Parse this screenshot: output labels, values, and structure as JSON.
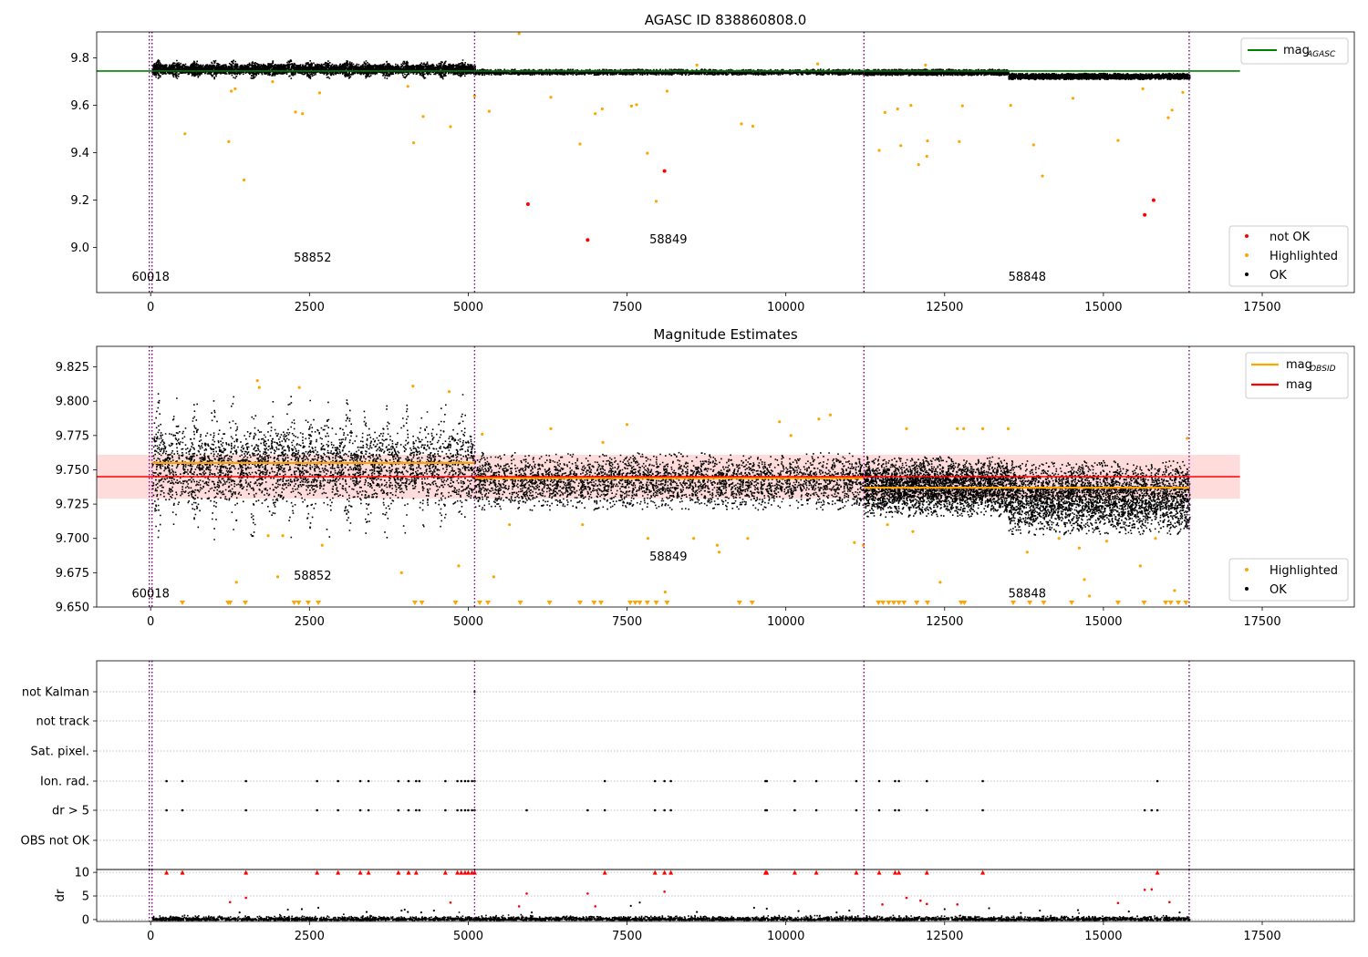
{
  "colors": {
    "ok": "#000000",
    "highlighted": "#ffa500",
    "not_ok": "#ff0000",
    "agasc_line": "#008000",
    "mag_line": "#ff0000",
    "obsid_line": "#ffa500",
    "vline": "#800080",
    "band": "#ffd6d6"
  },
  "chart_data": [
    {
      "type": "scatter",
      "title": "AGASC ID 838860808.0",
      "xlim": [
        -850,
        18950
      ],
      "ylim": [
        8.81,
        9.91
      ],
      "xticks": [
        0,
        2500,
        5000,
        7500,
        10000,
        12500,
        15000,
        17500
      ],
      "xtick_labels": [
        "0",
        "2500",
        "5000",
        "7500",
        "10000",
        "12500",
        "15000",
        "17500"
      ],
      "yticks": [
        9.0,
        9.2,
        9.4,
        9.6,
        9.8
      ],
      "ytick_labels": [
        "9.0",
        "9.2",
        "9.4",
        "9.6",
        "9.8"
      ],
      "obsid_boundaries": [
        0,
        5100,
        11230,
        16350
      ],
      "obsid_labels": [
        {
          "text": "60018",
          "x": 0,
          "y": 8.86
        },
        {
          "text": "58852",
          "x": 2550,
          "y": 8.94
        },
        {
          "text": "58849",
          "x": 8150,
          "y": 9.017
        },
        {
          "text": "58848",
          "x": 13800,
          "y": 8.86
        }
      ],
      "agasc_mag": 9.745,
      "agasc_line_x": [
        -850,
        17150
      ],
      "band_model": [
        {
          "x": [
            20,
            5100
          ],
          "center": 9.755,
          "half": 0.022,
          "osc": 0.018
        },
        {
          "x": [
            5100,
            11230
          ],
          "center": 9.743,
          "half": 0.012,
          "osc": 0
        },
        {
          "x": [
            11230,
            13500
          ],
          "center": 9.742,
          "half": 0.013,
          "osc": 0
        },
        {
          "x": [
            13500,
            16350
          ],
          "center": 9.725,
          "half": 0.013,
          "osc": 0
        }
      ],
      "highlighted_points": [
        [
          540,
          9.48
        ],
        [
          1230,
          9.447
        ],
        [
          1470,
          9.285
        ],
        [
          1270,
          9.66
        ],
        [
          1330,
          9.67
        ],
        [
          2280,
          9.572
        ],
        [
          2390,
          9.565
        ],
        [
          2660,
          9.653
        ],
        [
          1920,
          9.7
        ],
        [
          4140,
          9.442
        ],
        [
          4290,
          9.553
        ],
        [
          4720,
          9.51
        ],
        [
          4050,
          9.68
        ],
        [
          5100,
          9.64
        ],
        [
          5330,
          9.575
        ],
        [
          5800,
          9.903
        ],
        [
          6300,
          9.634
        ],
        [
          6760,
          9.437
        ],
        [
          7000,
          9.565
        ],
        [
          7110,
          9.585
        ],
        [
          7570,
          9.597
        ],
        [
          7650,
          9.603
        ],
        [
          7820,
          9.398
        ],
        [
          7960,
          9.195
        ],
        [
          8130,
          9.66
        ],
        [
          9300,
          9.522
        ],
        [
          9480,
          9.512
        ],
        [
          11470,
          9.41
        ],
        [
          11560,
          9.57
        ],
        [
          11760,
          9.585
        ],
        [
          11810,
          9.43
        ],
        [
          11970,
          9.6
        ],
        [
          12090,
          9.35
        ],
        [
          12220,
          9.385
        ],
        [
          12230,
          9.45
        ],
        [
          12730,
          9.447
        ],
        [
          12780,
          9.598
        ],
        [
          13540,
          9.6
        ],
        [
          13900,
          9.433
        ],
        [
          14040,
          9.302
        ],
        [
          14520,
          9.63
        ],
        [
          15230,
          9.452
        ],
        [
          15620,
          9.67
        ],
        [
          16020,
          9.548
        ],
        [
          16080,
          9.58
        ],
        [
          16250,
          9.655
        ],
        [
          8600,
          9.77
        ],
        [
          10500,
          9.775
        ],
        [
          12200,
          9.77
        ]
      ],
      "not_ok_points": [
        [
          5940,
          9.183
        ],
        [
          6880,
          9.032
        ],
        [
          8090,
          9.323
        ],
        [
          15650,
          9.138
        ],
        [
          15790,
          9.2
        ]
      ],
      "legend": [
        {
          "kind": "point",
          "label": "not OK",
          "color": "#ff0000"
        },
        {
          "kind": "point",
          "label": "Highlighted",
          "color": "#ffa500"
        },
        {
          "kind": "point",
          "label": "OK",
          "color": "#000000"
        }
      ],
      "legend_line": {
        "label": "mag",
        "subscript": "AGASC",
        "color": "#008000"
      }
    },
    {
      "type": "scatter",
      "title": "Magnitude Estimates",
      "xlim": [
        -850,
        18950
      ],
      "ylim": [
        9.65,
        9.84
      ],
      "xticks": [
        0,
        2500,
        5000,
        7500,
        10000,
        12500,
        15000,
        17500
      ],
      "xtick_labels": [
        "0",
        "2500",
        "5000",
        "7500",
        "10000",
        "12500",
        "15000",
        "17500"
      ],
      "yticks": [
        9.65,
        9.675,
        9.7,
        9.725,
        9.75,
        9.775,
        9.8,
        9.825
      ],
      "ytick_labels": [
        "9.650",
        "9.675",
        "9.700",
        "9.725",
        "9.750",
        "9.775",
        "9.800",
        "9.825"
      ],
      "obsid_boundaries": [
        0,
        5100,
        11230,
        16350
      ],
      "obsid_labels": [
        {
          "text": "60018",
          "x": 0,
          "y": 9.657
        },
        {
          "text": "58852",
          "x": 2550,
          "y": 9.67
        },
        {
          "text": "58849",
          "x": 8150,
          "y": 9.684
        },
        {
          "text": "58848",
          "x": 13800,
          "y": 9.657
        }
      ],
      "mag": 9.745,
      "mag_band": [
        9.729,
        9.761
      ],
      "mag_line_x": [
        -850,
        17150
      ],
      "obsid_mag_segments": [
        {
          "x": [
            20,
            5100
          ],
          "y": 9.755
        },
        {
          "x": [
            5100,
            11230
          ],
          "y": 9.744
        },
        {
          "x": [
            11230,
            16350
          ],
          "y": 9.737
        }
      ],
      "band_model": [
        {
          "x": [
            20,
            5100
          ],
          "center": 9.753,
          "half": 0.028,
          "osc": 0.026
        },
        {
          "x": [
            5100,
            11230
          ],
          "center": 9.742,
          "half": 0.021,
          "osc": 0
        },
        {
          "x": [
            11230,
            13500
          ],
          "center": 9.738,
          "half": 0.022,
          "osc": 0
        },
        {
          "x": [
            13500,
            16350
          ],
          "center": 9.73,
          "half": 0.027,
          "osc": 0
        }
      ],
      "highlighted_points": [
        [
          1680,
          9.815
        ],
        [
          1710,
          9.81
        ],
        [
          2340,
          9.81
        ],
        [
          4130,
          9.811
        ],
        [
          4700,
          9.807
        ],
        [
          1850,
          9.702
        ],
        [
          2080,
          9.702
        ],
        [
          2700,
          9.695
        ],
        [
          2640,
          9.755
        ],
        [
          2000,
          9.672
        ],
        [
          1350,
          9.668
        ],
        [
          3950,
          9.675
        ],
        [
          4850,
          9.68
        ],
        [
          5220,
          9.776
        ],
        [
          5400,
          9.672
        ],
        [
          6300,
          9.78
        ],
        [
          7120,
          9.77
        ],
        [
          7500,
          9.783
        ],
        [
          8100,
          9.661
        ],
        [
          8920,
          9.695
        ],
        [
          8950,
          9.69
        ],
        [
          9900,
          9.785
        ],
        [
          10080,
          9.775
        ],
        [
          10520,
          9.787
        ],
        [
          10700,
          9.79
        ],
        [
          11080,
          9.697
        ],
        [
          11220,
          9.695
        ],
        [
          11900,
          9.78
        ],
        [
          12430,
          9.668
        ],
        [
          12700,
          9.78
        ],
        [
          12800,
          9.78
        ],
        [
          13100,
          9.78
        ],
        [
          13500,
          9.78
        ],
        [
          13800,
          9.69
        ],
        [
          14300,
          9.7
        ],
        [
          14620,
          9.693
        ],
        [
          14700,
          9.67
        ],
        [
          14780,
          9.658
        ],
        [
          15050,
          9.698
        ],
        [
          15580,
          9.68
        ],
        [
          15820,
          9.7
        ],
        [
          16120,
          9.662
        ],
        [
          16320,
          9.773
        ],
        [
          7830,
          9.7
        ],
        [
          8550,
          9.7
        ],
        [
          9400,
          9.7
        ],
        [
          5650,
          9.71
        ],
        [
          6800,
          9.71
        ],
        [
          12000,
          9.705
        ],
        [
          11600,
          9.71
        ]
      ],
      "highlighted_down": [
        500,
        1220,
        1250,
        1490,
        2260,
        2330,
        2480,
        2640,
        4160,
        4270,
        4800,
        5180,
        5310,
        5820,
        6280,
        6760,
        6980,
        7090,
        7550,
        7630,
        7700,
        7820,
        7960,
        8130,
        9270,
        9470,
        11460,
        11530,
        11620,
        11700,
        11780,
        11860,
        12060,
        12230,
        12760,
        12810,
        13580,
        13840,
        14060,
        14500,
        15230,
        15640,
        15980,
        16060,
        16180,
        16300
      ],
      "legend": [
        {
          "kind": "point",
          "label": "Highlighted",
          "color": "#ffa500"
        },
        {
          "kind": "point",
          "label": "OK",
          "color": "#000000"
        }
      ],
      "legend_lines": [
        {
          "label": "mag",
          "subscript": "OBSID",
          "color": "#ffa500"
        },
        {
          "label": "mag",
          "subscript": "",
          "color": "#ff0000"
        }
      ]
    },
    {
      "type": "scatter",
      "title": "",
      "xlim": [
        -850,
        18950
      ],
      "flag_rows": [
        "not Kalman",
        "not track",
        "Sat. pixel.",
        "Ion. rad.",
        "dr > 5",
        "OBS not OK"
      ],
      "obsid_boundaries": [
        0,
        5100,
        11230,
        16350
      ],
      "ion_rad_x": [
        250,
        500,
        1500,
        2620,
        2950,
        3300,
        3430,
        3900,
        4060,
        4180,
        4230,
        4640,
        4830,
        4890,
        4950,
        5000,
        5060,
        5100,
        7150,
        7940,
        8090,
        8190,
        9680,
        9700,
        10140,
        10480,
        11110,
        11470,
        11720,
        11780,
        12220,
        13100,
        15850
      ],
      "dr5_x": [
        250,
        500,
        1500,
        2620,
        2950,
        3300,
        3430,
        3900,
        4060,
        4180,
        4230,
        4640,
        4830,
        4890,
        4950,
        5000,
        5060,
        5100,
        5920,
        6880,
        7150,
        7940,
        8090,
        8190,
        9680,
        9700,
        10140,
        10480,
        11110,
        11470,
        11720,
        11780,
        12220,
        13100,
        15650,
        15760,
        15850
      ],
      "not_kalman_x": [
        5100
      ]
    },
    {
      "type": "scatter",
      "title": "",
      "ylabel": "dr",
      "xlim": [
        -850,
        18950
      ],
      "ylim": [
        -0.4,
        10.6
      ],
      "xticks": [
        0,
        2500,
        5000,
        7500,
        10000,
        12500,
        15000,
        17500
      ],
      "xtick_labels": [
        "0",
        "2500",
        "5000",
        "7500",
        "10000",
        "12500",
        "15000",
        "17500"
      ],
      "yticks": [
        0,
        5,
        10
      ],
      "ytick_labels": [
        "0",
        "5",
        "10"
      ],
      "obsid_boundaries": [
        0,
        5100,
        11230,
        16350
      ],
      "red_clipped_x": [
        250,
        500,
        1500,
        2620,
        2950,
        3300,
        3430,
        3900,
        4060,
        4180,
        4640,
        4830,
        4890,
        4950,
        5000,
        5060,
        5100,
        7150,
        7940,
        8090,
        8190,
        9680,
        9700,
        10140,
        10480,
        11110,
        11470,
        11720,
        11780,
        12220,
        13100,
        15850
      ],
      "red_points": [
        [
          1250,
          3.7
        ],
        [
          1500,
          4.6
        ],
        [
          5920,
          5.5
        ],
        [
          6880,
          5.5
        ],
        [
          8090,
          5.9
        ],
        [
          11520,
          3.2
        ],
        [
          11900,
          4.6
        ],
        [
          12120,
          4.0
        ],
        [
          12220,
          3.3
        ],
        [
          12700,
          3.2
        ],
        [
          15230,
          3.5
        ],
        [
          15650,
          6.3
        ],
        [
          15760,
          6.4
        ],
        [
          16040,
          3.7
        ],
        [
          4720,
          3.6
        ],
        [
          5800,
          2.8
        ],
        [
          7000,
          2.8
        ]
      ],
      "black_points": [
        [
          2160,
          2.1
        ],
        [
          2380,
          2.2
        ],
        [
          2640,
          2.5
        ],
        [
          4260,
          1.5
        ],
        [
          4460,
          1.9
        ],
        [
          7560,
          2.9
        ],
        [
          7700,
          3.6
        ],
        [
          9500,
          2.5
        ],
        [
          9700,
          2.3
        ],
        [
          12500,
          2.2
        ],
        [
          13200,
          2.4
        ],
        [
          14000,
          1.9
        ],
        [
          14600,
          2.0
        ],
        [
          15400,
          1.7
        ],
        [
          1400,
          1.5
        ],
        [
          3400,
          1.6
        ],
        [
          10200,
          1.8
        ],
        [
          11000,
          1.9
        ],
        [
          13700,
          1.4
        ],
        [
          16200,
          1.5
        ],
        [
          3950,
          1.9
        ],
        [
          4000,
          2.1
        ],
        [
          4050,
          1.6
        ],
        [
          6000,
          1.5
        ],
        [
          8600,
          1.6
        ],
        [
          10800,
          1.5
        ]
      ]
    }
  ]
}
